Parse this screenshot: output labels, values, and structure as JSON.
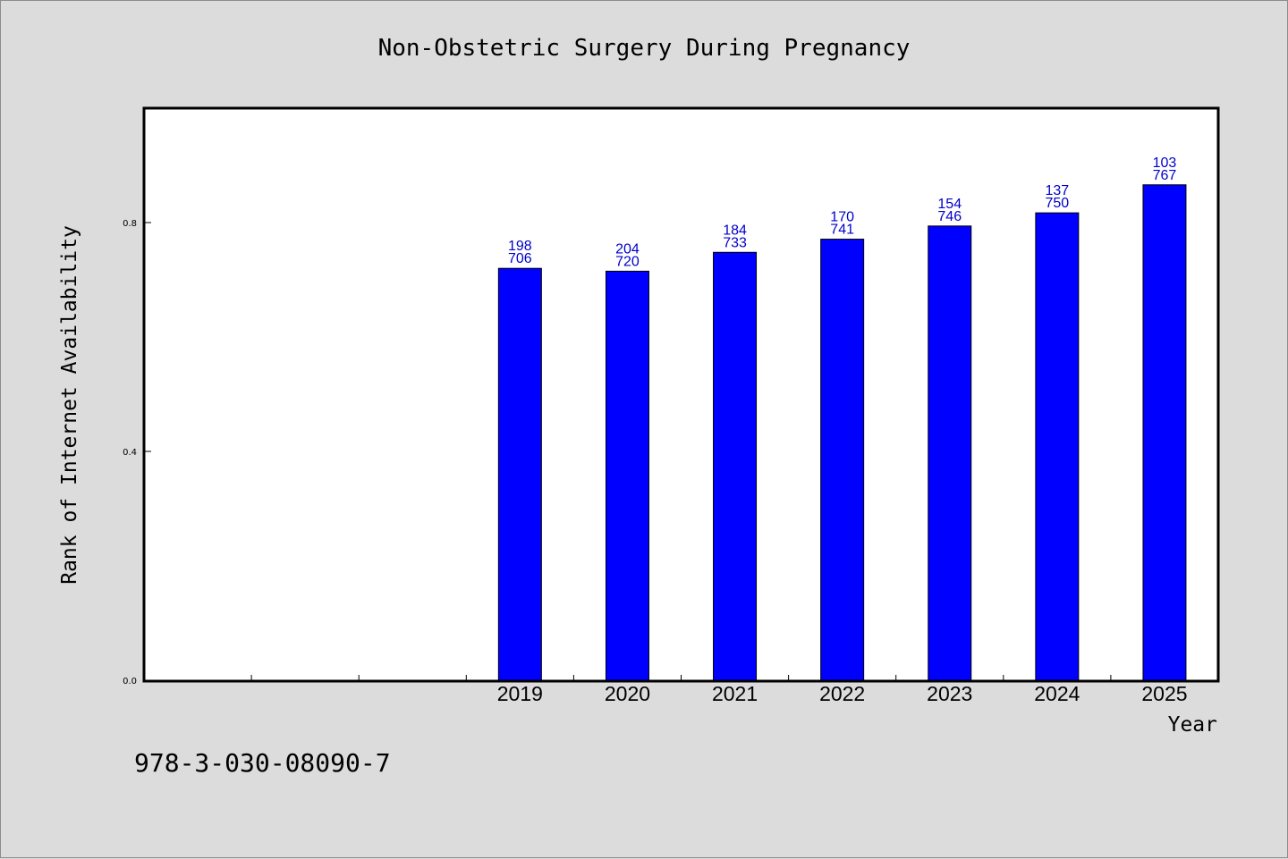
{
  "chart_data": {
    "type": "bar",
    "title": "Non-Obstetric Surgery During Pregnancy",
    "xlabel": "Year",
    "ylabel": "Rank of Internet Availability",
    "categories": [
      "",
      "",
      "",
      "2019",
      "2020",
      "2021",
      "2022",
      "2023",
      "2024",
      "2025"
    ],
    "values": [
      null,
      null,
      null,
      0.72,
      0.715,
      0.748,
      0.771,
      0.794,
      0.817,
      0.866
    ],
    "data_labels": [
      null,
      null,
      null,
      [
        "198",
        "706"
      ],
      [
        "204",
        "720"
      ],
      [
        "184",
        "733"
      ],
      [
        "170",
        "741"
      ],
      [
        "154",
        "746"
      ],
      [
        "137",
        "750"
      ],
      [
        "103",
        "767"
      ]
    ],
    "yticks": [
      "0.0",
      "0.4",
      "0.8"
    ],
    "ylim": [
      0,
      1.0
    ],
    "grid": false,
    "bar_color": "#0000ff",
    "label_color": "#0000cc"
  },
  "footer": {
    "isbn": "978-3-030-08090-7"
  }
}
